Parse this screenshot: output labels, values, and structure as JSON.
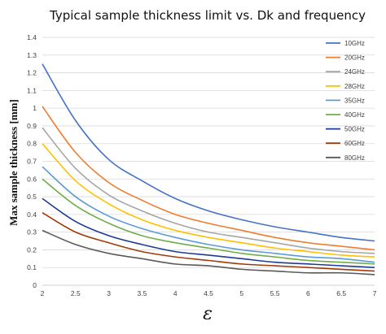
{
  "chart_data": {
    "type": "line",
    "title": "Typical sample thickness limit vs. Dk and frequency",
    "xlabel": "ε",
    "ylabel": "Max sample thickness [mm]",
    "xlim": [
      2,
      7
    ],
    "ylim": [
      0,
      1.4
    ],
    "x_ticks": [
      "2",
      "2.5",
      "3",
      "3.5",
      "4",
      "4.5",
      "5",
      "5.5",
      "6",
      "6.5",
      "7"
    ],
    "y_ticks": [
      "0",
      "0.1",
      "0.2",
      "0.3",
      "0.4",
      "0.5",
      "0.6",
      "0.7",
      "0.8",
      "0.9",
      "1",
      "1.1",
      "1.2",
      "1.3",
      "1.4"
    ],
    "grid": "horizontal",
    "legend_position": "right",
    "x": [
      2,
      2.5,
      3,
      3.5,
      4,
      4.5,
      5,
      5.5,
      6,
      6.5,
      7
    ],
    "series": [
      {
        "name": "10GHz",
        "color": "#4472C4",
        "values": [
          1.25,
          0.93,
          0.71,
          0.59,
          0.49,
          0.42,
          0.37,
          0.33,
          0.3,
          0.27,
          0.25
        ]
      },
      {
        "name": "20GHz",
        "color": "#ED7D31",
        "values": [
          1.01,
          0.75,
          0.58,
          0.48,
          0.4,
          0.35,
          0.31,
          0.27,
          0.24,
          0.22,
          0.2
        ]
      },
      {
        "name": "24GHz",
        "color": "#A5A5A5",
        "values": [
          0.89,
          0.66,
          0.51,
          0.42,
          0.35,
          0.3,
          0.27,
          0.24,
          0.21,
          0.19,
          0.18
        ]
      },
      {
        "name": "28GHz",
        "color": "#FFC000",
        "values": [
          0.8,
          0.59,
          0.46,
          0.37,
          0.31,
          0.27,
          0.24,
          0.21,
          0.19,
          0.17,
          0.16
        ]
      },
      {
        "name": "35GHz",
        "color": "#5B9BD5",
        "values": [
          0.67,
          0.5,
          0.39,
          0.32,
          0.27,
          0.23,
          0.2,
          0.18,
          0.16,
          0.15,
          0.13
        ]
      },
      {
        "name": "40GHz",
        "color": "#70AD47",
        "values": [
          0.6,
          0.45,
          0.35,
          0.28,
          0.24,
          0.21,
          0.18,
          0.16,
          0.14,
          0.13,
          0.12
        ]
      },
      {
        "name": "50GHz",
        "color": "#1F3A93",
        "values": [
          0.49,
          0.36,
          0.28,
          0.23,
          0.19,
          0.17,
          0.15,
          0.13,
          0.12,
          0.11,
          0.1
        ]
      },
      {
        "name": "60GHz",
        "color": "#9E3B0B",
        "values": [
          0.41,
          0.3,
          0.24,
          0.19,
          0.16,
          0.14,
          0.12,
          0.11,
          0.1,
          0.09,
          0.08
        ]
      },
      {
        "name": "80GHz",
        "color": "#595959",
        "values": [
          0.31,
          0.23,
          0.18,
          0.15,
          0.12,
          0.11,
          0.09,
          0.08,
          0.07,
          0.07,
          0.06
        ]
      }
    ]
  }
}
